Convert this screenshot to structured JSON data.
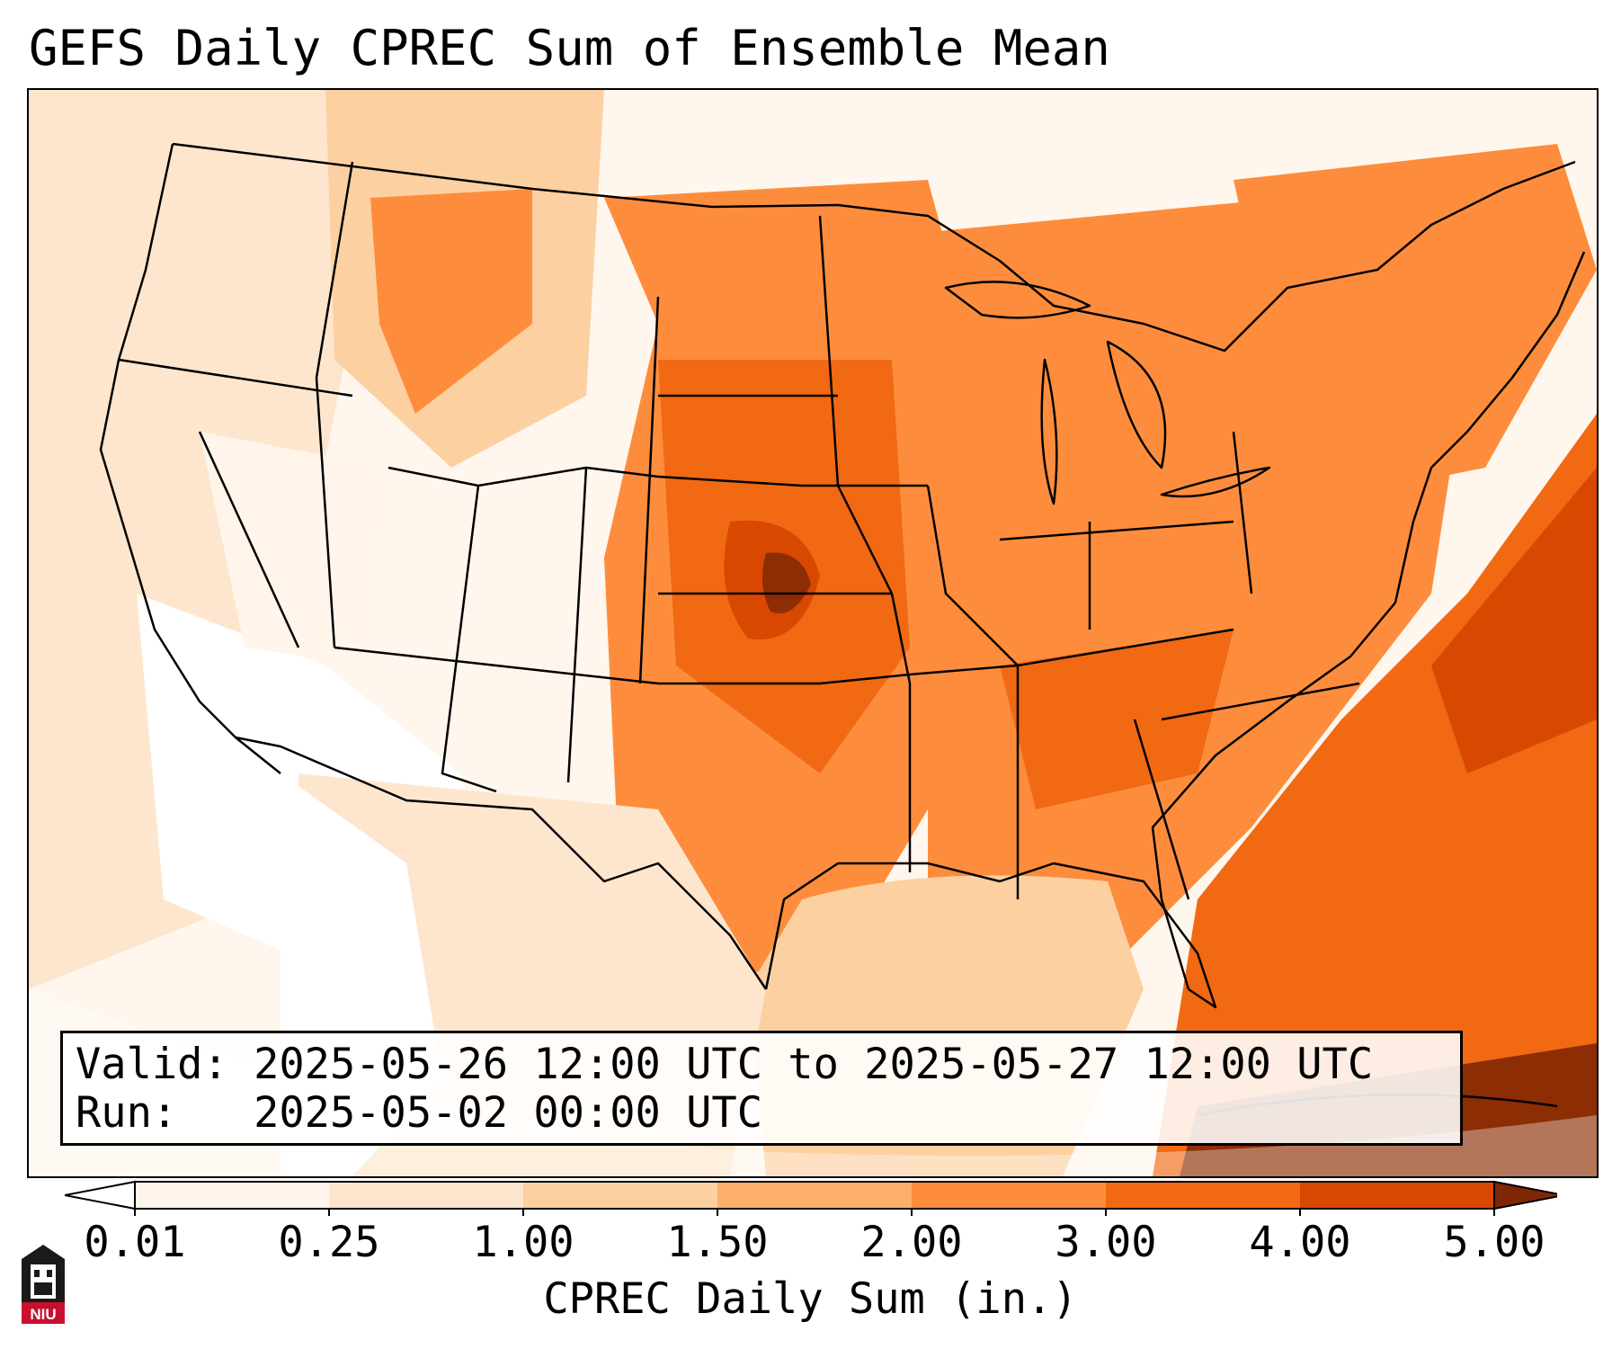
{
  "title": "GEFS Daily CPREC Sum of Ensemble Mean",
  "info": {
    "valid_label": "Valid:",
    "valid_text": "2025-05-26 12:00 UTC to 2025-05-27 12:00 UTC",
    "run_label": "Run:",
    "run_text": "2025-05-02 00:00 UTC"
  },
  "colorbar": {
    "label": "CPREC Daily Sum (in.)",
    "ticks": [
      "0.01",
      "0.25",
      "1.00",
      "1.50",
      "2.00",
      "3.00",
      "4.00",
      "5.00"
    ],
    "bin_colors": [
      "#fff5eb",
      "#fee6ce",
      "#fdd0a2",
      "#fdae6b",
      "#fd8d3c",
      "#f16913",
      "#d94801",
      "#8c2d04"
    ],
    "under_color": "#ffffff",
    "over_color": "#7f2704"
  },
  "logo": {
    "text": "NIU",
    "colors": {
      "red": "#c8102e",
      "black": "#1a1a1a"
    }
  },
  "map": {
    "projection": "lambert-conformal",
    "region": "contiguous-united-states",
    "ocean_fill": "#fff6ee",
    "boundaries": "state-and-country"
  }
}
